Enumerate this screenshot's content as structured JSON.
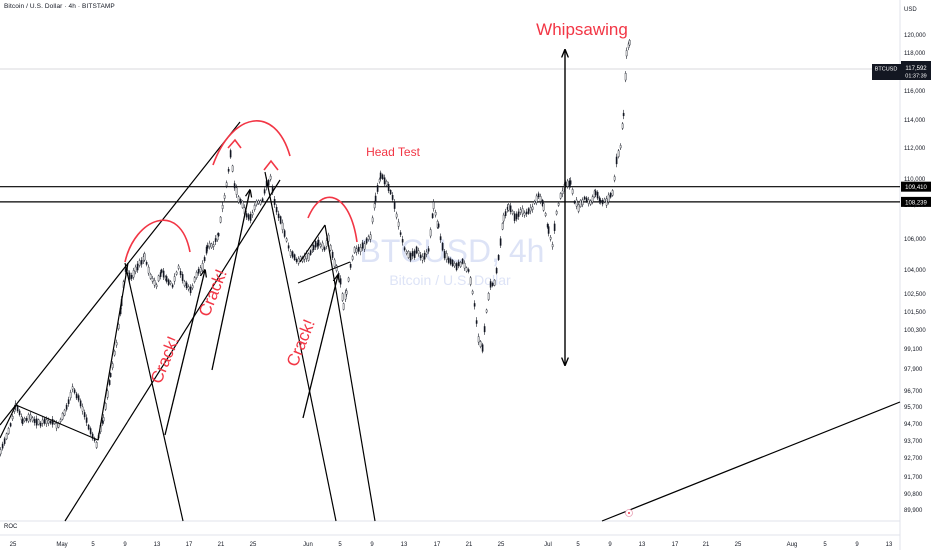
{
  "header": {
    "symbol_line": "Bitcoin / U.S. Dollar · 4h · BITSTAMP"
  },
  "indicator_label": "ROC",
  "chart_data": {
    "type": "candlestick",
    "watermark": {
      "symbol": "BTCUSD, 4h",
      "name": "Bitcoin / U.S. Dollar"
    },
    "currency_label": "USD",
    "y_ticks": [
      "120,000",
      "118,000",
      "116,000",
      "114,000",
      "112,000",
      "110,000",
      "108,000",
      "106,000",
      "104,000",
      "102,500",
      "101,500",
      "100,300",
      "99,100",
      "97,900",
      "96,700",
      "95,700",
      "94,700",
      "93,700",
      "92,700",
      "91,700",
      "90,800",
      "89,900"
    ],
    "x_ticks": [
      "25",
      "May",
      "5",
      "9",
      "13",
      "17",
      "21",
      "25",
      "Jun",
      "5",
      "9",
      "13",
      "17",
      "21",
      "25",
      "Jul",
      "5",
      "9",
      "13",
      "17",
      "21",
      "25",
      "Aug",
      "5",
      "9",
      "13"
    ],
    "price_badge": {
      "symbol": "BTCUSD",
      "price": "117,592",
      "countdown": "01:37:39",
      "color": "#131722"
    },
    "levels": [
      {
        "label": "109,410",
        "value": 109410
      },
      {
        "label": "108,239",
        "value": 108239
      }
    ],
    "annotations": {
      "title": "Whipsawing",
      "head_test": "Head Test",
      "crack": "Crack!"
    },
    "accent_color": "#f23645",
    "line_color": "#000000"
  }
}
